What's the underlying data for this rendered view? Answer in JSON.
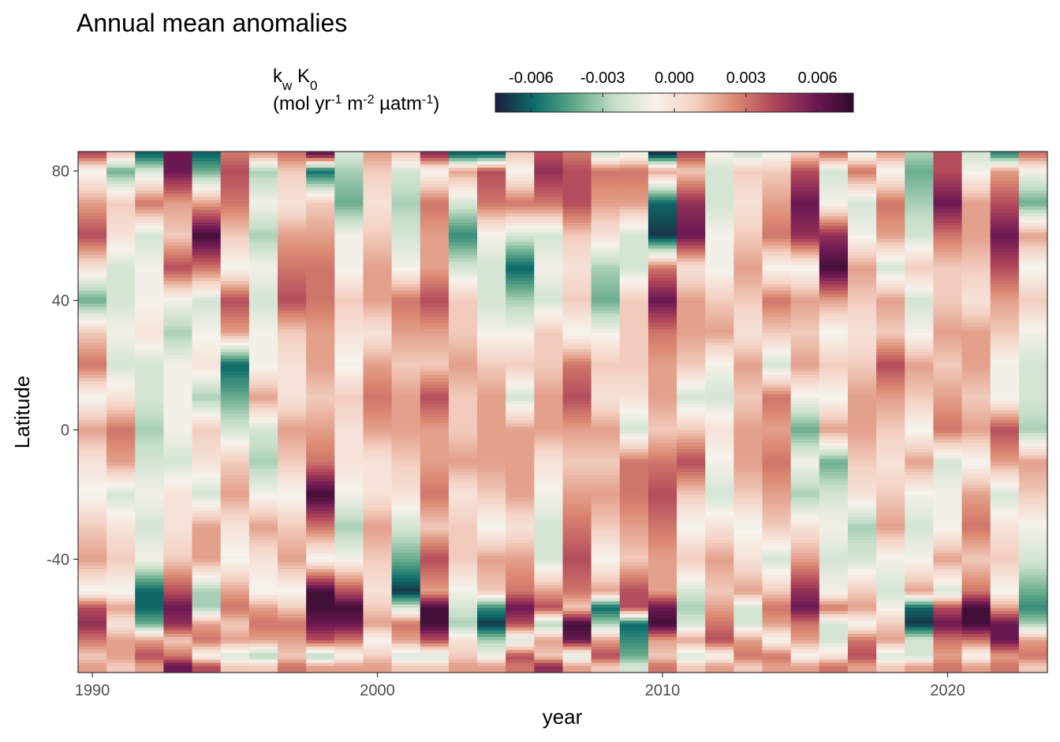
{
  "chart_data": {
    "type": "heatmap",
    "title": "Annual mean anomalies",
    "xlabel": "year",
    "ylabel": "Latitude",
    "legend": {
      "title_line1_parts": [
        {
          "text": "k",
          "sub": false
        },
        {
          "text": "w",
          "sub": true
        },
        {
          "text": " K",
          "sub": false
        },
        {
          "text": "0",
          "sub": true
        }
      ],
      "title_line2_parts": [
        {
          "text": "(mol yr",
          "sup": false
        },
        {
          "text": "-1",
          "sup": true
        },
        {
          "text": " m",
          "sup": false
        },
        {
          "text": "-2",
          "sup": true
        },
        {
          "text": " µatm",
          "sup": false
        },
        {
          "text": "-1",
          "sup": true
        },
        {
          "text": ")",
          "sup": false
        }
      ],
      "position": "top",
      "ticks": [
        "-0.006",
        "-0.003",
        "0.000",
        "0.003",
        "0.006"
      ],
      "tick_values": [
        -0.006,
        -0.003,
        0.0,
        0.003,
        0.006
      ],
      "range": [
        -0.0075,
        0.0075
      ],
      "colorscale": [
        "#1a1d3c",
        "#0e6e6b",
        "#61a889",
        "#c6dfc9",
        "#f7f2ec",
        "#f4d2c4",
        "#dc8a73",
        "#b04659",
        "#711a55",
        "#2d0a2b"
      ]
    },
    "x_ticks": [
      "1990",
      "2000",
      "2010",
      "2020"
    ],
    "x_tick_values": [
      1990,
      2000,
      2010,
      2020
    ],
    "y_ticks": [
      "80",
      "40",
      "0",
      "-40"
    ],
    "y_tick_values": [
      80,
      40,
      0,
      -40
    ],
    "xlim": [
      1989.5,
      2023.5
    ],
    "ylim": [
      -75,
      86
    ],
    "grid": false,
    "years": [
      1990,
      1991,
      1992,
      1993,
      1994,
      1995,
      1996,
      1997,
      1998,
      1999,
      2000,
      2001,
      2002,
      2003,
      2004,
      2005,
      2006,
      2007,
      2008,
      2009,
      2010,
      2011,
      2012,
      2013,
      2014,
      2015,
      2016,
      2017,
      2018,
      2019,
      2020,
      2021,
      2022,
      2023
    ],
    "lat_knots": [
      85,
      80,
      70,
      60,
      50,
      40,
      30,
      20,
      10,
      0,
      -10,
      -20,
      -30,
      -40,
      -50,
      -55,
      -60,
      -65,
      -70,
      -73
    ],
    "values_by_year_at_knots": [
      [
        0.004,
        -0.001,
        0.002,
        0.004,
        0.0,
        -0.004,
        0.001,
        0.003,
        -0.001,
        0.002,
        0.0,
        -0.001,
        0.001,
        0.002,
        -0.001,
        0.004,
        0.005,
        0.003,
        0.001,
        0.002
      ],
      [
        0.001,
        -0.004,
        0.001,
        0.0,
        -0.002,
        -0.002,
        -0.001,
        -0.002,
        0.0,
        0.003,
        0.002,
        -0.002,
        0.0,
        0.001,
        -0.001,
        0.002,
        0.0,
        0.002,
        0.002,
        0.001
      ],
      [
        -0.006,
        -0.002,
        0.003,
        -0.002,
        -0.001,
        -0.001,
        0.0,
        -0.002,
        -0.002,
        -0.003,
        -0.002,
        -0.001,
        -0.002,
        -0.001,
        -0.006,
        -0.006,
        -0.004,
        0.002,
        0.004,
        0.002
      ],
      [
        0.006,
        0.006,
        0.002,
        0.001,
        0.004,
        -0.001,
        -0.003,
        -0.001,
        -0.001,
        -0.001,
        -0.002,
        0.0,
        0.0,
        0.001,
        0.004,
        0.006,
        0.005,
        0.001,
        0.003,
        0.006
      ],
      [
        -0.006,
        -0.004,
        0.002,
        0.007,
        0.003,
        -0.002,
        -0.001,
        0.0,
        -0.003,
        0.001,
        0.0,
        -0.002,
        0.002,
        0.002,
        -0.003,
        -0.003,
        0.002,
        0.003,
        -0.001,
        0.004
      ],
      [
        0.003,
        0.004,
        0.003,
        0.001,
        -0.001,
        0.004,
        0.002,
        -0.006,
        -0.004,
        -0.002,
        0.001,
        0.002,
        0.0,
        -0.001,
        0.002,
        0.003,
        0.001,
        0.002,
        -0.002,
        0.001
      ],
      [
        0.002,
        -0.003,
        -0.001,
        -0.003,
        -0.001,
        -0.002,
        -0.001,
        -0.001,
        0.002,
        -0.002,
        -0.003,
        -0.001,
        0.002,
        0.0,
        -0.001,
        0.002,
        0.003,
        0.002,
        -0.003,
        0.001
      ],
      [
        0.003,
        0.001,
        0.0,
        0.002,
        0.003,
        0.004,
        0.001,
        0.0,
        0.0,
        0.002,
        0.001,
        -0.001,
        0.001,
        0.002,
        -0.001,
        0.001,
        0.003,
        0.002,
        0.001,
        0.003
      ],
      [
        0.006,
        -0.006,
        0.001,
        0.002,
        0.003,
        0.003,
        0.002,
        0.002,
        0.001,
        0.002,
        0.003,
        0.007,
        0.003,
        -0.001,
        0.007,
        0.007,
        0.006,
        0.004,
        -0.003,
        0.002
      ],
      [
        -0.002,
        -0.003,
        -0.004,
        -0.001,
        -0.001,
        0.001,
        0.0,
        -0.001,
        0.001,
        0.0,
        0.0,
        -0.001,
        -0.003,
        -0.001,
        0.004,
        0.007,
        0.006,
        0.003,
        -0.001,
        0.002
      ],
      [
        0.002,
        0.001,
        0.0,
        0.001,
        0.002,
        0.002,
        0.0,
        0.002,
        0.003,
        0.002,
        0.0,
        0.0,
        0.002,
        0.001,
        0.0,
        0.001,
        0.002,
        -0.001,
        0.001,
        0.002
      ],
      [
        0.001,
        -0.002,
        -0.003,
        -0.002,
        -0.001,
        0.003,
        0.002,
        0.001,
        0.002,
        0.002,
        0.001,
        0.0,
        -0.002,
        -0.004,
        -0.007,
        -0.002,
        0.003,
        0.002,
        -0.002,
        0.001
      ],
      [
        0.005,
        -0.001,
        0.003,
        0.002,
        0.002,
        0.004,
        0.002,
        0.001,
        0.004,
        0.002,
        0.002,
        0.003,
        0.001,
        0.004,
        0.002,
        0.007,
        0.007,
        0.004,
        -0.002,
        0.001
      ],
      [
        -0.006,
        0.002,
        -0.002,
        -0.005,
        -0.002,
        0.001,
        0.001,
        0.002,
        0.001,
        0.001,
        0.002,
        0.0,
        0.001,
        0.001,
        -0.001,
        -0.002,
        -0.003,
        0.0,
        0.001,
        0.002
      ],
      [
        -0.006,
        0.004,
        0.003,
        -0.001,
        -0.002,
        -0.002,
        -0.001,
        0.001,
        0.002,
        0.002,
        0.002,
        0.001,
        -0.001,
        0.002,
        0.001,
        -0.005,
        -0.007,
        -0.003,
        -0.001,
        0.002
      ],
      [
        0.001,
        -0.001,
        0.003,
        -0.002,
        -0.006,
        -0.003,
        -0.001,
        0.001,
        -0.002,
        0.002,
        0.002,
        0.002,
        0.0,
        0.002,
        0.003,
        0.006,
        0.004,
        -0.002,
        0.004,
        0.003
      ],
      [
        0.004,
        0.005,
        0.003,
        -0.002,
        -0.001,
        -0.002,
        0.001,
        0.001,
        0.002,
        0.002,
        0.0,
        -0.001,
        -0.002,
        -0.002,
        0.002,
        0.004,
        -0.003,
        0.002,
        0.001,
        0.005
      ],
      [
        0.003,
        0.004,
        0.004,
        0.001,
        0.0,
        0.001,
        -0.001,
        0.003,
        0.004,
        0.002,
        0.001,
        0.002,
        0.003,
        0.004,
        0.003,
        0.001,
        0.007,
        0.006,
        -0.002,
        0.002
      ],
      [
        -0.002,
        0.003,
        0.002,
        0.0,
        -0.003,
        -0.004,
        -0.001,
        0.001,
        0.0,
        0.002,
        0.001,
        0.002,
        0.001,
        -0.001,
        0.002,
        -0.006,
        -0.003,
        0.002,
        0.004,
        0.001
      ],
      [
        -0.001,
        0.003,
        0.002,
        -0.002,
        -0.002,
        0.001,
        0.001,
        0.001,
        0.0,
        -0.002,
        0.003,
        0.003,
        0.002,
        0.001,
        0.004,
        0.004,
        -0.006,
        -0.005,
        -0.004,
        -0.002
      ],
      [
        -0.007,
        0.002,
        -0.006,
        -0.007,
        0.003,
        0.006,
        0.003,
        0.002,
        0.002,
        0.001,
        0.003,
        0.004,
        0.003,
        0.002,
        0.002,
        0.006,
        0.007,
        0.002,
        0.001,
        0.003
      ],
      [
        0.004,
        0.001,
        0.005,
        0.006,
        0.0,
        0.002,
        0.002,
        0.001,
        -0.002,
        0.001,
        0.004,
        0.001,
        -0.001,
        0.001,
        -0.002,
        -0.003,
        -0.002,
        0.002,
        -0.002,
        0.001
      ],
      [
        -0.001,
        -0.002,
        -0.002,
        -0.001,
        -0.001,
        0.001,
        0.002,
        -0.001,
        -0.002,
        0.0,
        -0.001,
        -0.002,
        0.0,
        0.002,
        0.001,
        0.002,
        0.003,
        0.004,
        -0.001,
        0.002
      ],
      [
        -0.002,
        0.001,
        0.0,
        0.001,
        0.002,
        0.001,
        0.0,
        0.002,
        0.001,
        0.002,
        0.002,
        0.001,
        -0.001,
        0.0,
        0.002,
        -0.002,
        -0.002,
        0.002,
        0.003,
        0.001
      ],
      [
        -0.001,
        0.001,
        0.002,
        0.003,
        -0.001,
        0.003,
        0.001,
        -0.002,
        0.003,
        0.002,
        0.003,
        0.002,
        0.001,
        -0.002,
        0.001,
        0.003,
        0.002,
        -0.001,
        0.003,
        0.002
      ],
      [
        0.001,
        0.004,
        0.006,
        0.005,
        -0.001,
        0.002,
        0.001,
        0.002,
        -0.001,
        -0.004,
        -0.001,
        -0.003,
        0.0,
        0.002,
        0.005,
        0.006,
        0.003,
        0.002,
        -0.001,
        0.002
      ],
      [
        0.003,
        -0.002,
        -0.001,
        0.005,
        0.007,
        0.002,
        -0.001,
        0.001,
        -0.001,
        0.002,
        -0.004,
        -0.002,
        -0.001,
        -0.002,
        -0.001,
        0.003,
        -0.002,
        -0.002,
        0.0,
        0.003
      ],
      [
        -0.001,
        0.003,
        -0.002,
        -0.001,
        0.002,
        0.001,
        0.0,
        0.001,
        0.002,
        0.002,
        0.001,
        0.0,
        -0.003,
        -0.002,
        0.001,
        0.002,
        -0.001,
        0.003,
        0.004,
        0.002
      ],
      [
        0.002,
        -0.001,
        0.003,
        0.002,
        -0.002,
        0.002,
        0.001,
        0.004,
        0.002,
        0.001,
        0.0,
        0.001,
        0.002,
        -0.001,
        -0.002,
        -0.001,
        0.001,
        0.002,
        -0.002,
        0.001
      ],
      [
        -0.003,
        -0.004,
        -0.003,
        -0.002,
        0.001,
        -0.002,
        -0.001,
        0.002,
        0.001,
        -0.001,
        0.002,
        -0.001,
        -0.002,
        -0.001,
        0.002,
        -0.006,
        -0.007,
        -0.002,
        -0.002,
        0.002
      ],
      [
        0.004,
        0.004,
        0.006,
        0.003,
        0.001,
        0.001,
        0.002,
        0.001,
        0.002,
        0.003,
        -0.002,
        -0.001,
        -0.001,
        0.002,
        -0.002,
        0.004,
        0.006,
        0.003,
        0.002,
        0.003
      ],
      [
        -0.002,
        -0.001,
        0.002,
        0.002,
        0.001,
        0.0,
        0.002,
        0.002,
        0.001,
        0.002,
        -0.001,
        0.002,
        0.003,
        0.001,
        0.003,
        0.007,
        0.007,
        0.003,
        -0.001,
        0.002
      ],
      [
        -0.005,
        0.002,
        0.004,
        0.006,
        0.004,
        0.002,
        0.001,
        -0.001,
        -0.001,
        0.004,
        0.002,
        -0.002,
        0.0,
        0.001,
        -0.001,
        0.002,
        0.006,
        0.006,
        0.002,
        0.003
      ],
      [
        0.003,
        -0.001,
        -0.004,
        0.002,
        -0.001,
        0.001,
        -0.001,
        -0.002,
        -0.002,
        -0.003,
        0.002,
        0.001,
        -0.001,
        -0.002,
        -0.004,
        -0.005,
        -0.003,
        0.002,
        0.003,
        0.001
      ]
    ]
  }
}
